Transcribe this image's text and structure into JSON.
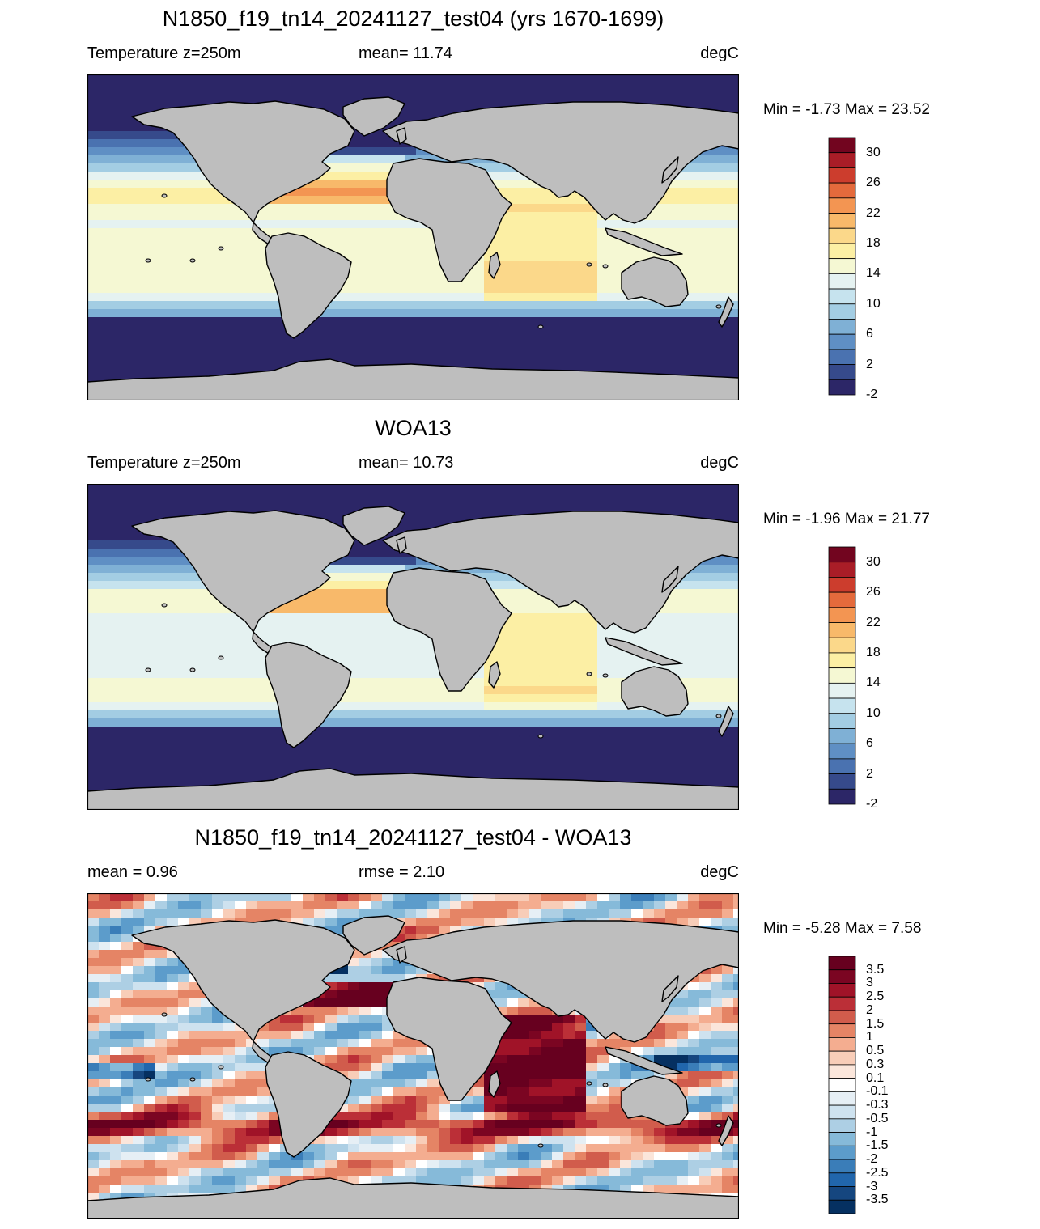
{
  "panels": [
    {
      "title": "N1850_f19_tn14_20241127_test04 (yrs 1670-1699)",
      "label_left": "Temperature z=250m",
      "label_mid": "mean=  11.74",
      "label_right": "degC",
      "minmax": "Min =  -1.73 Max =  23.52",
      "colorbar": {
        "colors": [
          "#2c2667",
          "#364a8b",
          "#4a72b0",
          "#5f8fc4",
          "#7fb0d5",
          "#a3cde3",
          "#c6e3ee",
          "#e5f2f1",
          "#f5f8d3",
          "#fcefa4",
          "#fbd88a",
          "#f8b96a",
          "#f39552",
          "#e46a3c",
          "#cc3d2d",
          "#a91d27",
          "#72051f"
        ],
        "labels": [
          "30",
          "26",
          "22",
          "18",
          "14",
          "10",
          "6",
          "2",
          "-2"
        ]
      }
    },
    {
      "title": "WOA13",
      "label_left": "Temperature z=250m",
      "label_mid": "mean=  10.73",
      "label_right": "degC",
      "minmax": "Min =  -1.96 Max =  21.77",
      "colorbar": {
        "colors": [
          "#2c2667",
          "#364a8b",
          "#4a72b0",
          "#5f8fc4",
          "#7fb0d5",
          "#a3cde3",
          "#c6e3ee",
          "#e5f2f1",
          "#f5f8d3",
          "#fcefa4",
          "#fbd88a",
          "#f8b96a",
          "#f39552",
          "#e46a3c",
          "#cc3d2d",
          "#a91d27",
          "#72051f"
        ],
        "labels": [
          "30",
          "26",
          "22",
          "18",
          "14",
          "10",
          "6",
          "2",
          "-2"
        ]
      }
    },
    {
      "title": "N1850_f19_tn14_20241127_test04 - WOA13",
      "label_left": "mean =   0.96",
      "label_mid": "rmse =   2.10",
      "label_right": "degC",
      "minmax": "Min =  -5.28 Max =   7.58",
      "colorbar": {
        "colors": [
          "#053061",
          "#15467f",
          "#2166ac",
          "#3a7db8",
          "#5c9ccb",
          "#86bad9",
          "#adcfe4",
          "#cee2ef",
          "#e6eff5",
          "#ffffff",
          "#fbe6db",
          "#f8cdb8",
          "#f4ad90",
          "#e58465",
          "#d15c4c",
          "#bb2f37",
          "#a01328",
          "#7b0522",
          "#67001f"
        ],
        "labels": [
          "3.5",
          "3",
          "2.5",
          "2",
          "1.5",
          "1",
          "0.5",
          "0.3",
          "0.1",
          "-0.1",
          "-0.3",
          "-0.5",
          "-1",
          "-1.5",
          "-2",
          "-2.5",
          "-3",
          "-3.5"
        ]
      }
    }
  ],
  "colors": {
    "land": "#bebebe",
    "coastline": "#000000",
    "frame": "#000000"
  }
}
